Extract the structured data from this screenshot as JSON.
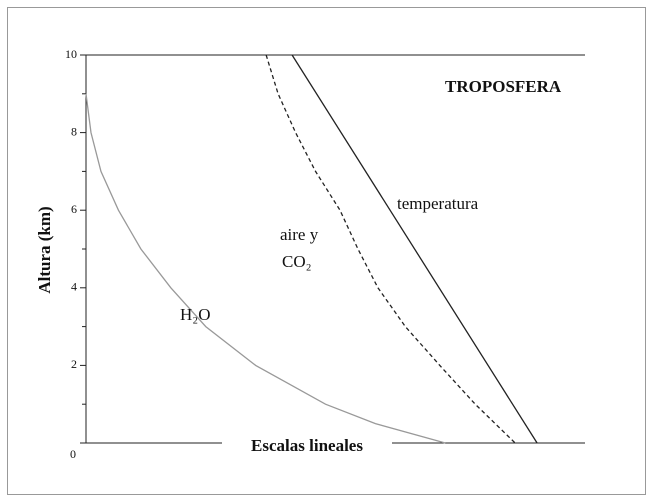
{
  "chart_data": {
    "type": "line",
    "title": "TROPOSFERA",
    "ylabel": "Altura (km)",
    "xlabel": "Escalas lineales",
    "ylim": [
      0,
      10
    ],
    "yticks": [
      0,
      2,
      4,
      6,
      8,
      10
    ],
    "yminor_ticks": [
      1,
      3,
      5,
      7,
      9
    ],
    "xlim": [
      0,
      100
    ],
    "series": [
      {
        "label": [
          "H₂O"
        ],
        "color": "#999999",
        "dash": false,
        "x": [
          0,
          1,
          3,
          6.5,
          11,
          17,
          24,
          34,
          48,
          58,
          72
        ],
        "values": [
          9,
          8,
          7,
          6,
          5,
          4,
          3,
          2,
          1,
          0.5,
          0
        ]
      },
      {
        "label": [
          "aire y",
          "CO₂"
        ],
        "color": "#222222",
        "dash": true,
        "x": [
          36.1,
          38.5,
          42,
          46,
          50.9,
          54.5,
          58.5,
          64,
          70.9,
          78,
          86
        ],
        "values": [
          10,
          9,
          8,
          7,
          6,
          5,
          4,
          3,
          2,
          1,
          0
        ]
      },
      {
        "label": [
          "temperatura"
        ],
        "color": "#222222",
        "dash": false,
        "x": [
          41.3,
          90.4
        ],
        "values": [
          10,
          0
        ]
      }
    ]
  }
}
